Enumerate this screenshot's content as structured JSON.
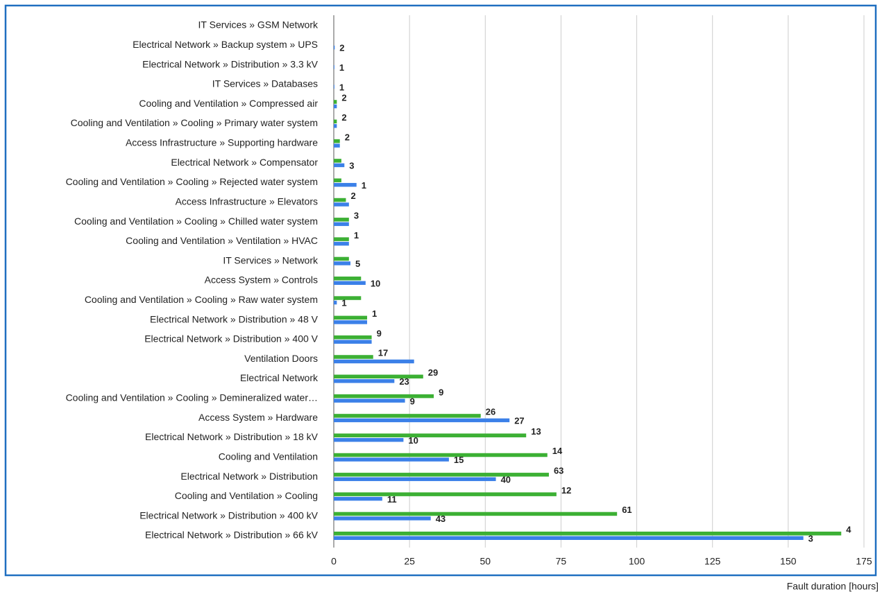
{
  "chart_data": {
    "type": "bar",
    "orientation": "horizontal",
    "x_label": "Fault duration [hours]",
    "categories": [
      "IT Services » GSM Network",
      "Electrical Network » Backup system » UPS",
      "Electrical Network » Distribution » 3.3 kV",
      "IT Services » Databases",
      "Cooling and Ventilation » Compressed air",
      "Cooling and Ventilation » Cooling » Primary water system",
      "Access Infrastructure » Supporting hardware",
      "Electrical Network » Compensator",
      "Cooling and Ventilation » Cooling » Rejected water system",
      "Access Infrastructure » Elevators",
      "Cooling and Ventilation » Cooling » Chilled water system",
      "Cooling and Ventilation » Ventilation » HVAC",
      "IT Services » Network",
      "Access System » Controls",
      "Cooling and Ventilation » Cooling » Raw water system",
      "Electrical Network » Distribution » 48 V",
      "Electrical Network » Distribution » 400 V",
      "Ventilation Doors",
      "Electrical Network",
      "Cooling and Ventilation » Cooling » Demineralized water…",
      "Access System » Hardware",
      "Electrical Network » Distribution » 18 kV",
      "Cooling and Ventilation",
      "Electrical Network » Distribution",
      "Cooling and Ventilation » Cooling",
      "Electrical Network » Distribution » 400 kV",
      "Electrical Network » Distribution » 66 kV"
    ],
    "series": [
      {
        "color": "#3cb034",
        "values": [
          0,
          0,
          0,
          0,
          1,
          1,
          2,
          2.5,
          2.5,
          4,
          5,
          5,
          5,
          9,
          9,
          11,
          12.5,
          13,
          29.5,
          33,
          48.5,
          63.5,
          70.5,
          71,
          73.5,
          93.5,
          167.5
        ],
        "counts": [
          null,
          null,
          null,
          null,
          2,
          2,
          2,
          null,
          null,
          2,
          3,
          1,
          null,
          null,
          null,
          1,
          9,
          17,
          29,
          9,
          26,
          13,
          14,
          63,
          12,
          61,
          4
        ]
      },
      {
        "color": "#3b80e8",
        "values": [
          0,
          0.3,
          0.2,
          0.2,
          1,
          1,
          2,
          3.5,
          7.5,
          5,
          5,
          5,
          5.5,
          10.5,
          1,
          11,
          12.5,
          26.5,
          20,
          23.5,
          58,
          23,
          38,
          53.5,
          16,
          32,
          155
        ],
        "counts": [
          null,
          2,
          1,
          1,
          null,
          null,
          null,
          3,
          1,
          null,
          null,
          null,
          5,
          10,
          1,
          null,
          null,
          null,
          23,
          9,
          27,
          10,
          15,
          40,
          11,
          43,
          3
        ]
      }
    ],
    "xlim": [
      0,
      175
    ],
    "xticks": [
      0,
      25,
      50,
      75,
      100,
      125,
      150,
      175
    ],
    "grid": true
  }
}
